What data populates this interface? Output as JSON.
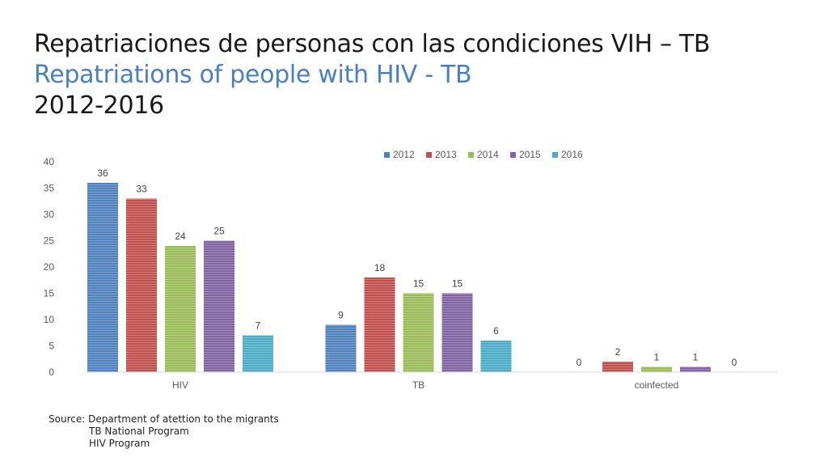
{
  "title": {
    "spanish": "Repatriaciones de personas con las condiciones VIH – TB",
    "english": "Repatriations of people with HIV - TB",
    "years": "2012-2016"
  },
  "source": {
    "line1": "Source: Department of atettion to the migrants",
    "line2": "TB National Program",
    "line3": "HIV Program"
  },
  "chart_data": {
    "type": "bar",
    "categories": [
      "HIV",
      "TB",
      "coinfected"
    ],
    "series": [
      {
        "name": "2012",
        "color": "#4f81bd",
        "values": [
          36,
          9,
          0
        ]
      },
      {
        "name": "2013",
        "color": "#c0504d",
        "values": [
          33,
          18,
          2
        ]
      },
      {
        "name": "2014",
        "color": "#9bbb59",
        "values": [
          24,
          15,
          1
        ]
      },
      {
        "name": "2015",
        "color": "#8064a2",
        "values": [
          25,
          15,
          1
        ]
      },
      {
        "name": "2016",
        "color": "#4bacc6",
        "values": [
          7,
          6,
          0
        ]
      }
    ],
    "yticks": [
      "0",
      "5",
      "10",
      "15",
      "20",
      "25",
      "30",
      "35",
      "40"
    ],
    "ylim": [
      0,
      40
    ],
    "legend": "top",
    "grid": false
  }
}
